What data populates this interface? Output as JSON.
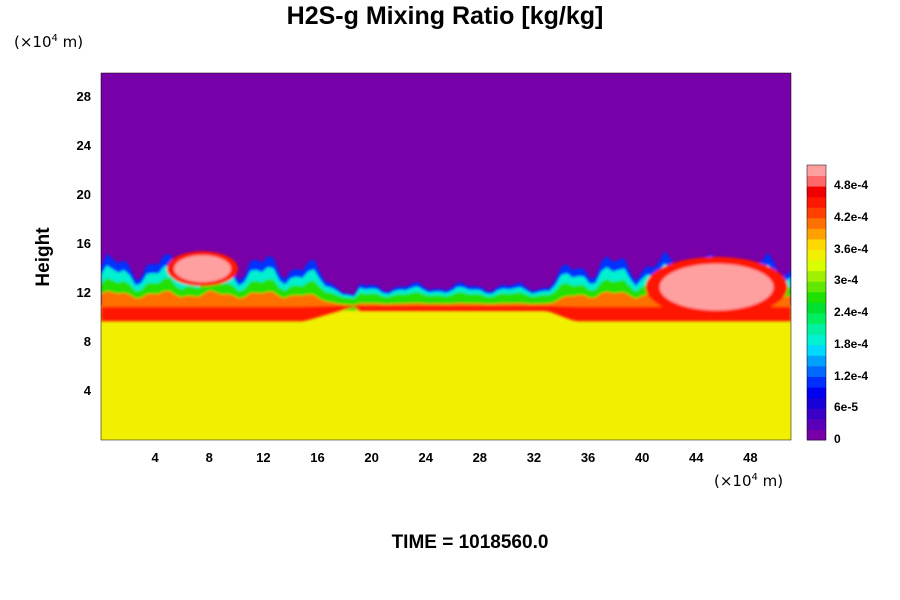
{
  "chart_data": {
    "type": "heatmap",
    "title": "H2S-g Mixing Ratio [kg/kg]",
    "ylabel": "Height",
    "xunit_prefix": "(×10",
    "xunit_exp": "4",
    "xunit_suffix": " m)",
    "yunit_prefix": "(×10",
    "yunit_exp": "4",
    "yunit_suffix": " m)",
    "xlim": [
      0,
      51
    ],
    "ylim": [
      0,
      30
    ],
    "xticks": [
      "4",
      "8",
      "12",
      "16",
      "20",
      "24",
      "28",
      "32",
      "36",
      "40",
      "44",
      "48"
    ],
    "yticks": [
      "4",
      "8",
      "12",
      "16",
      "20",
      "24",
      "28"
    ],
    "colorbar": {
      "range": [
        0,
        0.00052
      ],
      "labels": [
        "0",
        "6e-5",
        "1.2e-4",
        "1.8e-4",
        "2.4e-4",
        "3e-4",
        "3.6e-4",
        "4.2e-4",
        "4.8e-4"
      ],
      "colors": [
        "#7800a8",
        "#5a00b8",
        "#3a00c8",
        "#1800d8",
        "#0000f0",
        "#0030ff",
        "#0068ff",
        "#00a0ff",
        "#00d8ff",
        "#00f0d0",
        "#00f0a0",
        "#00ee60",
        "#00e030",
        "#20e000",
        "#60e800",
        "#a0f000",
        "#d8ff00",
        "#f0f000",
        "#ffd800",
        "#ffa000",
        "#ff7000",
        "#ff4000",
        "#ff1800",
        "#f00000",
        "#ff6868",
        "#ffa0a0"
      ]
    },
    "fields": {
      "upper_layer_value": 0,
      "lower_layer_value": 0.00035,
      "interface_height": 11,
      "high_value_patches": [
        {
          "x": 7.5,
          "y": 14,
          "value": 0.0005
        },
        {
          "x": 45.5,
          "y": 12.5,
          "value": 0.0005
        }
      ]
    }
  },
  "footer": {
    "time_label": "TIME = 1018560.0"
  }
}
